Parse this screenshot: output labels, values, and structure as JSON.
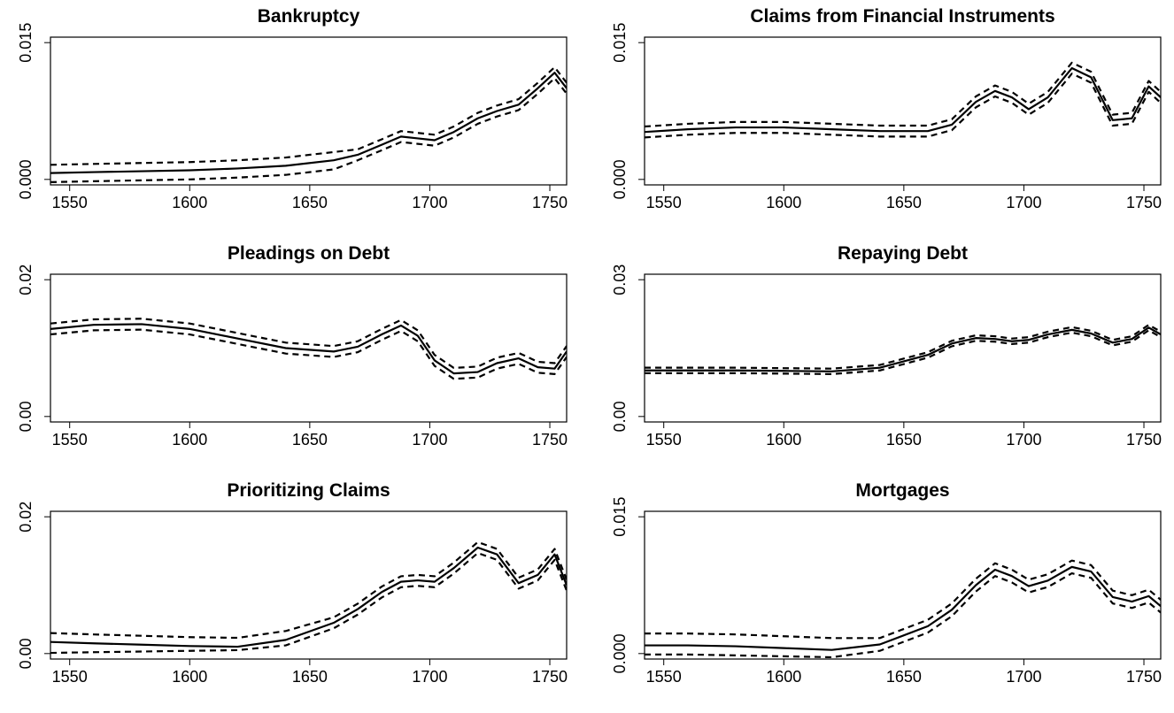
{
  "chart_data": [
    {
      "type": "line",
      "title": "Bankruptcy",
      "x": [
        1542,
        1560,
        1580,
        1600,
        1620,
        1640,
        1660,
        1670,
        1680,
        1688,
        1695,
        1702,
        1710,
        1720,
        1728,
        1737,
        1745,
        1752,
        1757
      ],
      "series": [
        {
          "color": "#000000",
          "style": "solid",
          "values": [
            0.0007,
            0.0008,
            0.0009,
            0.001,
            0.0012,
            0.0015,
            0.0021,
            0.0027,
            0.0038,
            0.0047,
            0.0045,
            0.0043,
            0.0052,
            0.0067,
            0.0075,
            0.0082,
            0.01,
            0.0117,
            0.01
          ]
        },
        {
          "color": "#000000",
          "style": "dashed",
          "values": [
            0.0016,
            0.0017,
            0.0018,
            0.0019,
            0.0021,
            0.0024,
            0.003,
            0.0033,
            0.0044,
            0.0053,
            0.0051,
            0.0049,
            0.0058,
            0.0073,
            0.0081,
            0.0088,
            0.0106,
            0.0123,
            0.0106
          ]
        },
        {
          "color": "#000000",
          "style": "dashed",
          "values": [
            -0.0003,
            -0.0002,
            -0.0001,
            0.0,
            0.0002,
            0.0005,
            0.0011,
            0.0021,
            0.0032,
            0.0041,
            0.0039,
            0.0037,
            0.0046,
            0.0061,
            0.0069,
            0.0076,
            0.0094,
            0.0111,
            0.0094
          ]
        }
      ],
      "xlim": [
        1542,
        1757
      ],
      "xticks": [
        1550,
        1600,
        1650,
        1700,
        1750
      ],
      "ylim": [
        -0.0006,
        0.0156
      ],
      "yticks": [
        {
          "value": 0,
          "label": "0.000"
        },
        0.015
      ]
    },
    {
      "type": "line",
      "title": "Claims from Financial Instruments",
      "x": [
        1542,
        1560,
        1580,
        1600,
        1620,
        1640,
        1660,
        1670,
        1680,
        1688,
        1695,
        1702,
        1710,
        1720,
        1728,
        1737,
        1745,
        1752,
        1757
      ],
      "series": [
        {
          "color": "#000000",
          "style": "solid",
          "values": [
            0.0052,
            0.0055,
            0.0057,
            0.0057,
            0.0055,
            0.0053,
            0.0053,
            0.006,
            0.0085,
            0.0097,
            0.009,
            0.0077,
            0.009,
            0.0122,
            0.0112,
            0.0065,
            0.0067,
            0.0102,
            0.009
          ]
        },
        {
          "color": "#000000",
          "style": "dashed",
          "values": [
            0.0058,
            0.0061,
            0.0063,
            0.0063,
            0.0061,
            0.0059,
            0.0059,
            0.0066,
            0.0091,
            0.0103,
            0.0096,
            0.0083,
            0.0096,
            0.0128,
            0.0118,
            0.0071,
            0.0073,
            0.0108,
            0.0096
          ]
        },
        {
          "color": "#000000",
          "style": "dashed",
          "values": [
            0.0046,
            0.0049,
            0.0051,
            0.0051,
            0.0049,
            0.0047,
            0.0047,
            0.0054,
            0.0079,
            0.0091,
            0.0084,
            0.0071,
            0.0084,
            0.0116,
            0.0106,
            0.0059,
            0.0061,
            0.0096,
            0.0084
          ]
        }
      ],
      "xlim": [
        1542,
        1757
      ],
      "xticks": [
        1550,
        1600,
        1650,
        1700,
        1750
      ],
      "ylim": [
        -0.0006,
        0.0156
      ],
      "yticks": [
        {
          "value": 0,
          "label": "0.000"
        },
        0.015
      ]
    },
    {
      "type": "line",
      "title": "Pleadings on Debt",
      "x": [
        1542,
        1560,
        1580,
        1600,
        1620,
        1640,
        1660,
        1670,
        1680,
        1688,
        1695,
        1702,
        1710,
        1720,
        1728,
        1737,
        1745,
        1752,
        1757
      ],
      "series": [
        {
          "color": "#000000",
          "style": "solid",
          "values": [
            0.0128,
            0.0134,
            0.0135,
            0.0128,
            0.0114,
            0.01,
            0.0095,
            0.0102,
            0.012,
            0.0133,
            0.0118,
            0.0082,
            0.0063,
            0.0065,
            0.0078,
            0.0085,
            0.0072,
            0.007,
            0.0095
          ]
        },
        {
          "color": "#000000",
          "style": "dashed",
          "values": [
            0.0136,
            0.0142,
            0.0143,
            0.0136,
            0.0122,
            0.0108,
            0.0103,
            0.011,
            0.0128,
            0.0141,
            0.0126,
            0.009,
            0.0071,
            0.0073,
            0.0086,
            0.0093,
            0.008,
            0.0078,
            0.0103
          ]
        },
        {
          "color": "#000000",
          "style": "dashed",
          "values": [
            0.012,
            0.0126,
            0.0127,
            0.012,
            0.0106,
            0.0092,
            0.0087,
            0.0094,
            0.0112,
            0.0125,
            0.011,
            0.0074,
            0.0055,
            0.0057,
            0.007,
            0.0077,
            0.0064,
            0.0062,
            0.0087
          ]
        }
      ],
      "xlim": [
        1542,
        1757
      ],
      "xticks": [
        1550,
        1600,
        1650,
        1700,
        1750
      ],
      "ylim": [
        -0.0008,
        0.0208
      ],
      "yticks": [
        {
          "value": 0,
          "label": "0.00"
        },
        0.02
      ]
    },
    {
      "type": "line",
      "title": "Repaying Debt",
      "x": [
        1542,
        1560,
        1580,
        1600,
        1620,
        1640,
        1660,
        1670,
        1680,
        1688,
        1695,
        1702,
        1710,
        1720,
        1728,
        1737,
        1745,
        1752,
        1757
      ],
      "series": [
        {
          "color": "#000000",
          "style": "solid",
          "values": [
            0.0101,
            0.0101,
            0.0101,
            0.01,
            0.0099,
            0.0107,
            0.0135,
            0.016,
            0.0172,
            0.017,
            0.0165,
            0.0168,
            0.018,
            0.019,
            0.0182,
            0.0162,
            0.017,
            0.0195,
            0.018
          ]
        },
        {
          "color": "#000000",
          "style": "dashed",
          "values": [
            0.0107,
            0.0107,
            0.0107,
            0.0106,
            0.0105,
            0.0113,
            0.0141,
            0.0166,
            0.0178,
            0.0176,
            0.0171,
            0.0174,
            0.0186,
            0.0196,
            0.0188,
            0.0168,
            0.0176,
            0.0201,
            0.0186
          ]
        },
        {
          "color": "#000000",
          "style": "dashed",
          "values": [
            0.0095,
            0.0095,
            0.0095,
            0.0094,
            0.0093,
            0.0101,
            0.0129,
            0.0154,
            0.0166,
            0.0164,
            0.0159,
            0.0162,
            0.0174,
            0.0184,
            0.0176,
            0.0156,
            0.0164,
            0.0189,
            0.0174
          ]
        }
      ],
      "xlim": [
        1542,
        1757
      ],
      "xticks": [
        1550,
        1600,
        1650,
        1700,
        1750
      ],
      "ylim": [
        -0.0012,
        0.0312
      ],
      "yticks": [
        {
          "value": 0,
          "label": "0.00"
        },
        0.03
      ]
    },
    {
      "type": "line",
      "title": "Prioritizing Claims",
      "x": [
        1542,
        1560,
        1580,
        1600,
        1620,
        1640,
        1660,
        1670,
        1680,
        1688,
        1695,
        1702,
        1710,
        1720,
        1728,
        1737,
        1745,
        1752,
        1757
      ],
      "series": [
        {
          "color": "#000000",
          "style": "solid",
          "values": [
            0.0017,
            0.0015,
            0.0013,
            0.0011,
            0.001,
            0.002,
            0.0045,
            0.0065,
            0.009,
            0.0105,
            0.0107,
            0.0105,
            0.0125,
            0.0155,
            0.0145,
            0.0103,
            0.0115,
            0.0145,
            0.01
          ]
        },
        {
          "color": "#000000",
          "style": "dashed",
          "values": [
            0.003,
            0.0028,
            0.0026,
            0.0024,
            0.0023,
            0.0033,
            0.0053,
            0.0073,
            0.0098,
            0.0113,
            0.0115,
            0.0113,
            0.0133,
            0.0163,
            0.0153,
            0.0111,
            0.0123,
            0.0153,
            0.0108
          ]
        },
        {
          "color": "#000000",
          "style": "dashed",
          "values": [
            0.0001,
            0.0002,
            0.0003,
            0.0004,
            0.0005,
            0.0012,
            0.0037,
            0.0057,
            0.0082,
            0.0097,
            0.0099,
            0.0097,
            0.0117,
            0.0147,
            0.0137,
            0.0095,
            0.0107,
            0.0137,
            0.0092
          ]
        }
      ],
      "xlim": [
        1542,
        1757
      ],
      "xticks": [
        1550,
        1600,
        1650,
        1700,
        1750
      ],
      "ylim": [
        -0.0008,
        0.0208
      ],
      "yticks": [
        {
          "value": 0,
          "label": "0.00"
        },
        0.02
      ]
    },
    {
      "type": "line",
      "title": "Mortgages",
      "x": [
        1542,
        1560,
        1580,
        1600,
        1620,
        1640,
        1660,
        1670,
        1680,
        1688,
        1695,
        1702,
        1710,
        1720,
        1728,
        1737,
        1745,
        1752,
        1757
      ],
      "series": [
        {
          "color": "#000000",
          "style": "solid",
          "values": [
            0.0009,
            0.0009,
            0.0008,
            0.0006,
            0.0004,
            0.001,
            0.003,
            0.0048,
            0.0075,
            0.0092,
            0.0085,
            0.0074,
            0.008,
            0.0095,
            0.009,
            0.0062,
            0.0057,
            0.0063,
            0.0052
          ]
        },
        {
          "color": "#000000",
          "style": "dashed",
          "values": [
            0.0022,
            0.0022,
            0.0021,
            0.0019,
            0.0017,
            0.0017,
            0.0037,
            0.0055,
            0.0082,
            0.0099,
            0.0092,
            0.0081,
            0.0087,
            0.0102,
            0.0097,
            0.0069,
            0.0064,
            0.007,
            0.0059
          ]
        },
        {
          "color": "#000000",
          "style": "dashed",
          "values": [
            -0.0001,
            -0.0001,
            -0.0002,
            -0.0003,
            -0.0004,
            0.0003,
            0.0023,
            0.0041,
            0.0068,
            0.0085,
            0.0078,
            0.0067,
            0.0073,
            0.0088,
            0.0083,
            0.0055,
            0.005,
            0.0056,
            0.0045
          ]
        }
      ],
      "xlim": [
        1542,
        1757
      ],
      "xticks": [
        1550,
        1600,
        1650,
        1700,
        1750
      ],
      "ylim": [
        -0.0006,
        0.0156
      ],
      "yticks": [
        {
          "value": 0,
          "label": "0.000"
        },
        0.015
      ]
    }
  ]
}
